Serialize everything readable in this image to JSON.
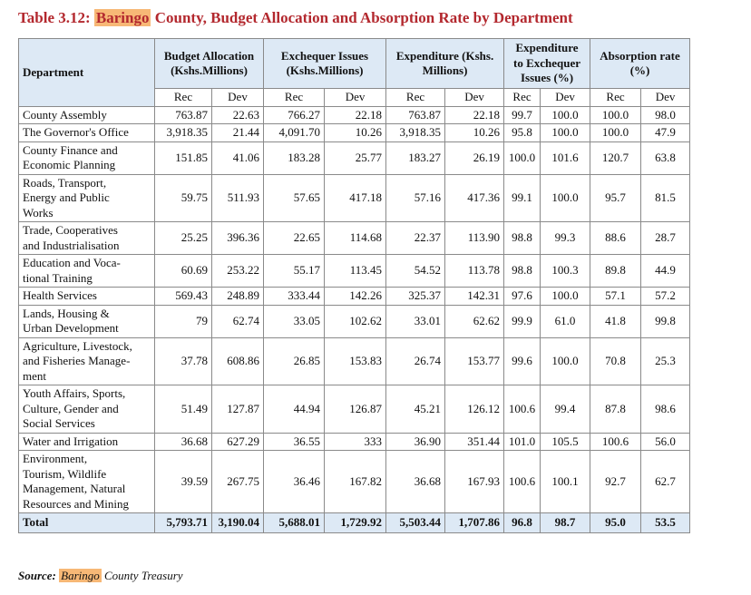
{
  "title": {
    "label": "Table 3.12:",
    "highlight": "Baringo",
    "rest": "County, Budget Allocation and Absorption Rate by Department"
  },
  "table": {
    "first_header": "Department",
    "groups": [
      "Budget Allocation\n(Kshs.Millions)",
      "Exchequer Issues\n(Kshs.Millions)",
      "Expenditure (Kshs.\nMillions)",
      "Expenditure\nto Exchequer\nIssues (%)",
      "Absorption rate\n(%)"
    ],
    "subheaders": [
      "Rec",
      "Dev",
      "Rec",
      "Dev",
      "Rec",
      "Dev",
      "Rec",
      "Dev",
      "Rec",
      "Dev"
    ],
    "rows": [
      [
        "County Assembly",
        "763.87",
        "22.63",
        "766.27",
        "22.18",
        "763.87",
        "22.18",
        "99.7",
        "100.0",
        "100.0",
        "98.0"
      ],
      [
        "The Governor's Office",
        "3,918.35",
        "21.44",
        "4,091.70",
        "10.26",
        "3,918.35",
        "10.26",
        "95.8",
        "100.0",
        "100.0",
        "47.9"
      ],
      [
        "County Finance and\nEconomic Planning",
        "151.85",
        "41.06",
        "183.28",
        "25.77",
        "183.27",
        "26.19",
        "100.0",
        "101.6",
        "120.7",
        "63.8"
      ],
      [
        "Roads, Transport,\nEnergy and Public\nWorks",
        "59.75",
        "511.93",
        "57.65",
        "417.18",
        "57.16",
        "417.36",
        "99.1",
        "100.0",
        "95.7",
        "81.5"
      ],
      [
        "Trade, Cooperatives\nand Industrialisation",
        "25.25",
        "396.36",
        "22.65",
        "114.68",
        "22.37",
        "113.90",
        "98.8",
        "99.3",
        "88.6",
        "28.7"
      ],
      [
        "Education and Voca-\ntional Training",
        "60.69",
        "253.22",
        "55.17",
        "113.45",
        "54.52",
        "113.78",
        "98.8",
        "100.3",
        "89.8",
        "44.9"
      ],
      [
        "Health Services",
        "569.43",
        "248.89",
        "333.44",
        "142.26",
        "325.37",
        "142.31",
        "97.6",
        "100.0",
        "57.1",
        "57.2"
      ],
      [
        "Lands, Housing &\nUrban Development",
        "79",
        "62.74",
        "33.05",
        "102.62",
        "33.01",
        "62.62",
        "99.9",
        "61.0",
        "41.8",
        "99.8"
      ],
      [
        "Agriculture, Livestock,\nand Fisheries Manage-\nment",
        "37.78",
        "608.86",
        "26.85",
        "153.83",
        "26.74",
        "153.77",
        "99.6",
        "100.0",
        "70.8",
        "25.3"
      ],
      [
        "Youth Affairs, Sports,\nCulture, Gender and\nSocial Services",
        "51.49",
        "127.87",
        "44.94",
        "126.87",
        "45.21",
        "126.12",
        "100.6",
        "99.4",
        "87.8",
        "98.6"
      ],
      [
        "Water and Irrigation",
        "36.68",
        "627.29",
        "36.55",
        "333",
        "36.90",
        "351.44",
        "101.0",
        "105.5",
        "100.6",
        "56.0"
      ],
      [
        "Environment,\nTourism, Wildlife\nManagement, Natural\nResources and Mining",
        "39.59",
        "267.75",
        "36.46",
        "167.82",
        "36.68",
        "167.93",
        "100.6",
        "100.1",
        "92.7",
        "62.7"
      ]
    ],
    "total": [
      "Total",
      "5,793.71",
      "3,190.04",
      "5,688.01",
      "1,729.92",
      "5,503.44",
      "1,707.86",
      "96.8",
      "98.7",
      "95.0",
      "53.5"
    ]
  },
  "source": {
    "label": "Source:",
    "highlight": "Baringo",
    "rest": "County Treasury"
  }
}
